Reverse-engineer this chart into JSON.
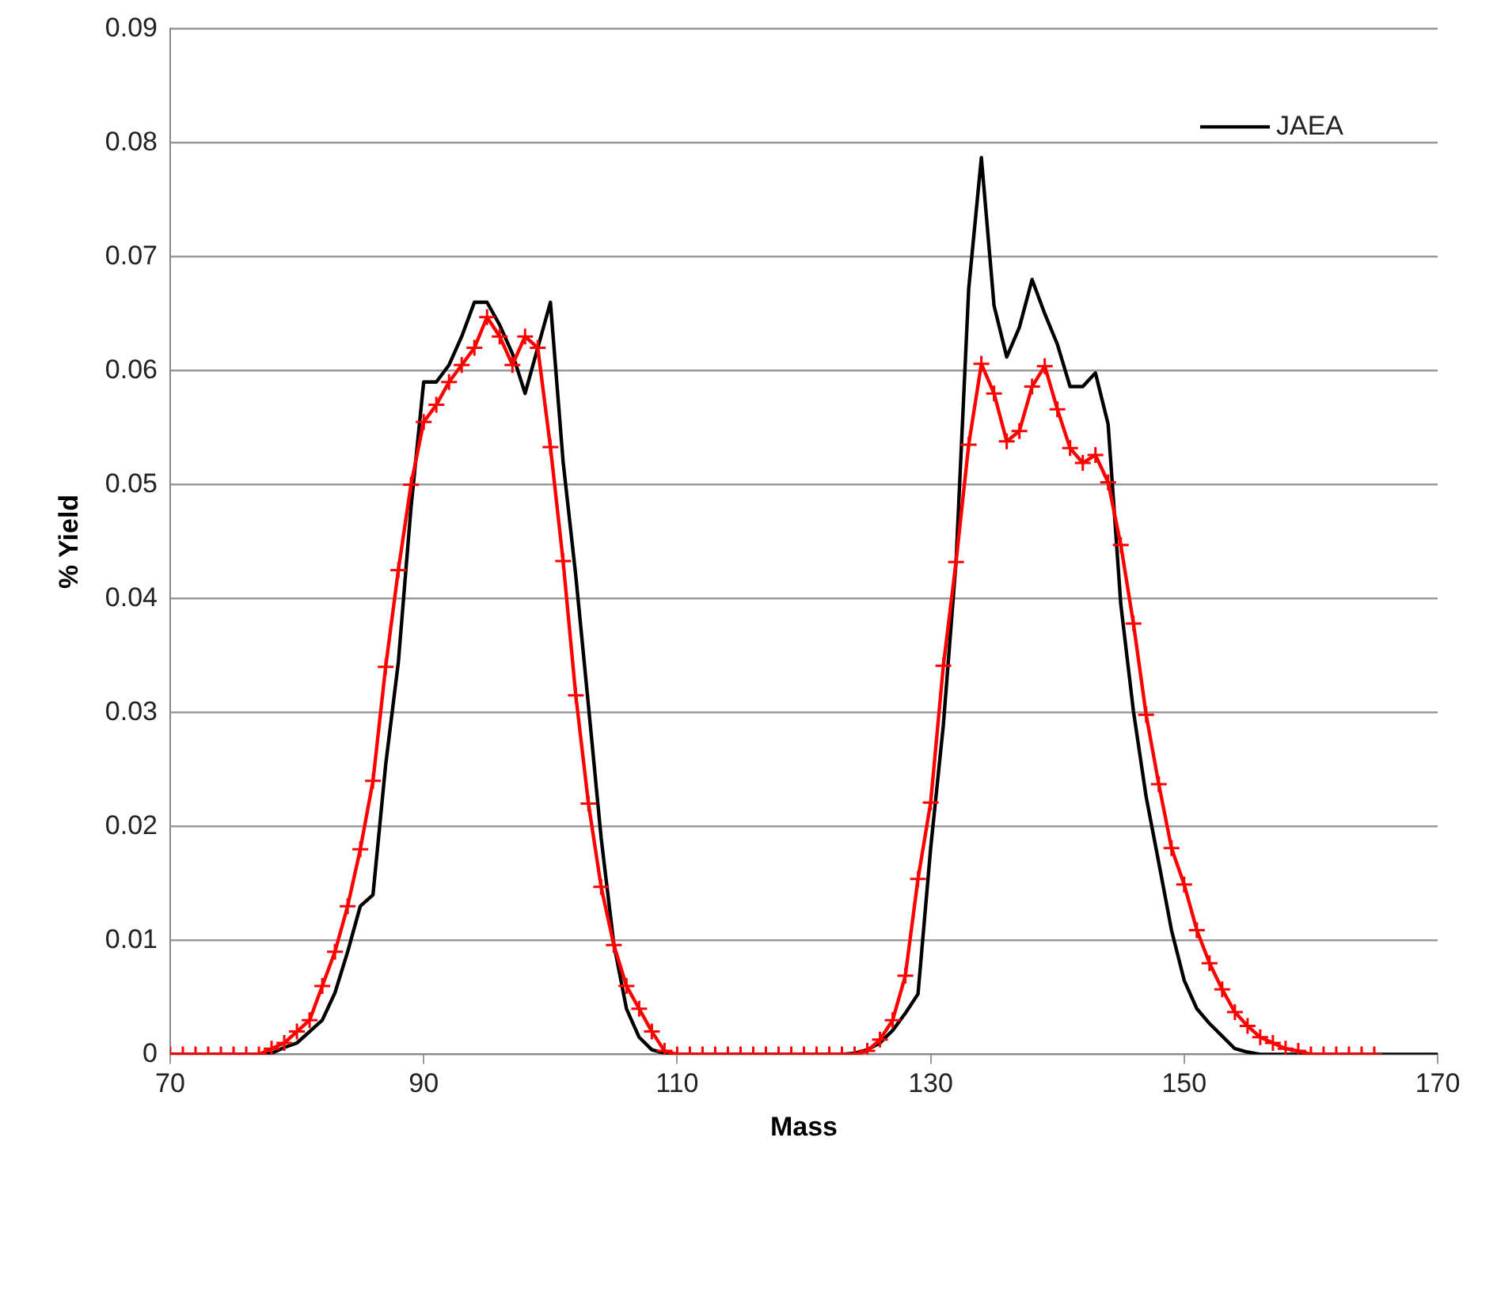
{
  "chart_data": {
    "type": "line",
    "xlabel": "Mass",
    "ylabel": "% Yield",
    "xlim": [
      70,
      170
    ],
    "xticks": [
      70,
      90,
      110,
      130,
      150,
      170
    ],
    "ylim": [
      0,
      0.09
    ],
    "yticks": [
      0,
      0.01,
      0.02,
      0.03,
      0.04,
      0.05,
      0.06,
      0.07,
      0.08,
      0.09
    ],
    "grid": "y",
    "legend": "top right",
    "line_style": "solid",
    "series": [
      {
        "color": "#ff0000",
        "marker": "cross",
        "x": [
          70,
          71,
          72,
          73,
          74,
          75,
          76,
          77,
          78,
          79,
          80,
          81,
          82,
          83,
          84,
          85,
          86,
          87,
          88,
          89,
          90,
          91,
          92,
          93,
          94,
          95,
          96,
          97,
          98,
          99,
          100,
          101,
          102,
          103,
          104,
          105,
          106,
          107,
          108,
          109,
          110,
          111,
          112,
          113,
          114,
          115,
          116,
          117,
          118,
          119,
          120,
          121,
          122,
          123,
          124,
          125,
          126,
          127,
          128,
          129,
          130,
          131,
          132,
          133,
          134,
          135,
          136,
          137,
          138,
          139,
          140,
          141,
          142,
          143,
          144,
          145,
          146,
          147,
          148,
          149,
          150,
          151,
          152,
          153,
          154,
          155,
          156,
          157,
          158,
          159,
          160,
          161,
          162,
          163,
          164,
          165
        ],
        "values": [
          0,
          0,
          0,
          0,
          0,
          0,
          0,
          0,
          0.0005,
          0.001,
          0.002,
          0.003,
          0.006,
          0.009,
          0.013,
          0.018,
          0.024,
          0.034,
          0.0425,
          0.05,
          0.0555,
          0.057,
          0.059,
          0.0605,
          0.062,
          0.0647,
          0.063,
          0.0605,
          0.063,
          0.062,
          0.0533,
          0.0433,
          0.0315,
          0.022,
          0.0147,
          0.0096,
          0.006,
          0.004,
          0.002,
          0.0003,
          0,
          0,
          0,
          0,
          0,
          0,
          0,
          0,
          0,
          0,
          0,
          0,
          0,
          0,
          0,
          0.0003,
          0.0013,
          0.003,
          0.0069,
          0.0154,
          0.0221,
          0.0341,
          0.0432,
          0.0535,
          0.0606,
          0.058,
          0.0538,
          0.0547,
          0.0586,
          0.0604,
          0.0566,
          0.0532,
          0.0519,
          0.0526,
          0.0502,
          0.0447,
          0.0378,
          0.0298,
          0.0237,
          0.0181,
          0.0149,
          0.0109,
          0.008,
          0.0057,
          0.0037,
          0.0025,
          0.0015,
          0.001,
          0.0005,
          0.0003,
          0,
          0,
          0,
          0,
          0,
          0
        ]
      },
      {
        "name": "JAEA",
        "color": "#000000",
        "marker": "none",
        "x": [
          70,
          71,
          72,
          73,
          74,
          75,
          76,
          77,
          78,
          79,
          80,
          81,
          82,
          83,
          84,
          85,
          86,
          87,
          88,
          89,
          90,
          91,
          92,
          93,
          94,
          95,
          96,
          97,
          98,
          99,
          100,
          101,
          102,
          103,
          104,
          105,
          106,
          107,
          108,
          109,
          110,
          111,
          112,
          113,
          114,
          115,
          116,
          117,
          118,
          119,
          120,
          121,
          122,
          123,
          124,
          125,
          126,
          127,
          128,
          129,
          130,
          131,
          132,
          133,
          134,
          135,
          136,
          137,
          138,
          139,
          140,
          141,
          142,
          143,
          144,
          145,
          146,
          147,
          148,
          149,
          150,
          151,
          152,
          153,
          154,
          155,
          156,
          157,
          158,
          159,
          160,
          161,
          162,
          163,
          164,
          165,
          166,
          167,
          168,
          169,
          170
        ],
        "values": [
          0,
          0,
          0,
          0,
          0,
          0,
          0,
          0,
          0.0001,
          0.0006,
          0.001,
          0.002,
          0.003,
          0.0054,
          0.009,
          0.013,
          0.014,
          0.0254,
          0.0344,
          0.048,
          0.059,
          0.059,
          0.0605,
          0.063,
          0.066,
          0.066,
          0.064,
          0.0615,
          0.058,
          0.062,
          0.066,
          0.052,
          0.042,
          0.0306,
          0.019,
          0.0097,
          0.004,
          0.0015,
          0.0004,
          0.0001,
          0,
          0,
          0,
          0,
          0,
          0,
          0,
          0,
          0,
          0,
          0,
          0,
          0,
          0,
          0.0001,
          0.0004,
          0.001,
          0.0021,
          0.0036,
          0.0053,
          0.0181,
          0.0289,
          0.0432,
          0.0672,
          0.0787,
          0.0657,
          0.0612,
          0.0638,
          0.068,
          0.065,
          0.0623,
          0.0586,
          0.0586,
          0.0598,
          0.0553,
          0.0395,
          0.0301,
          0.0226,
          0.0168,
          0.0109,
          0.0065,
          0.004,
          0.0027,
          0.0016,
          0.0005,
          0.0002,
          0,
          0,
          0,
          0,
          0,
          0,
          0,
          0,
          0,
          0,
          0,
          0,
          0,
          0,
          0
        ]
      }
    ]
  }
}
